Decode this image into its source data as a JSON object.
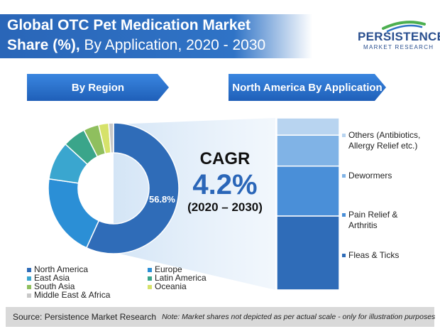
{
  "header": {
    "title_line1": "Global OTC Pet Medication Market",
    "title_line2_bold": "Share (%),",
    "title_line2_rest": " By Application, 2020 - 2030"
  },
  "logo": {
    "brand": "PERSISTENCE",
    "sub": "MARKET RESEARCH",
    "colors": [
      "#2a4f8f",
      "#4caf50",
      "#2f73c6"
    ]
  },
  "panels": {
    "region_label": "By Region",
    "application_label": "North America By Application"
  },
  "cagr": {
    "label": "CAGR",
    "value": "4.2%",
    "period": "(2020 – 2030)"
  },
  "chart_data": [
    {
      "type": "pie",
      "subtype": "donut",
      "title": "By Region",
      "slices": [
        {
          "label": "North America",
          "value": 56.8,
          "color": "#2f6cb8",
          "data_label": "56.8%"
        },
        {
          "label": "Europe",
          "value": 20.5,
          "color": "#2b8fd6",
          "data_label": ""
        },
        {
          "label": "East Asia",
          "value": 9.5,
          "color": "#3aa6cf",
          "data_label": ""
        },
        {
          "label": "Latin America",
          "value": 5.7,
          "color": "#3aa58a",
          "data_label": ""
        },
        {
          "label": "South Asia",
          "value": 3.8,
          "color": "#8fbf5e",
          "data_label": ""
        },
        {
          "label": "Oceania",
          "value": 2.5,
          "color": "#d6e26a",
          "data_label": ""
        },
        {
          "label": "Middle East & Africa",
          "value": 1.2,
          "color": "#c8c8c8",
          "data_label": ""
        }
      ],
      "legend": [
        "North America",
        "Europe",
        "East Asia",
        "Latin America",
        "South Asia",
        "Oceania",
        "Middle East & Africa"
      ],
      "legend_position": "bottom"
    },
    {
      "type": "bar",
      "subtype": "stacked-100",
      "title": "North America By Application",
      "categories": [
        "Fleas & Ticks",
        "Pain Relief & Arthritis",
        "Dewormers",
        "Others (Antibiotics, Allergy Relief etc.)"
      ],
      "values": [
        43,
        29,
        18,
        10
      ],
      "colors": [
        "#2f6cb8",
        "#4a8fd8",
        "#80b3e6",
        "#b8d4f0"
      ]
    }
  ],
  "application_labels": [
    {
      "line1": "Others (Antibiotics,",
      "line2": "Allergy Relief etc.)"
    },
    {
      "line1": "Dewormers",
      "line2": ""
    },
    {
      "line1": "Pain Relief &",
      "line2": "Arthritis"
    },
    {
      "line1": "Fleas & Ticks",
      "line2": ""
    }
  ],
  "footer": {
    "source": "Source: Persistence Market Research",
    "note": "Note: Market shares not depicted as per actual scale - only for illustration purposes"
  }
}
